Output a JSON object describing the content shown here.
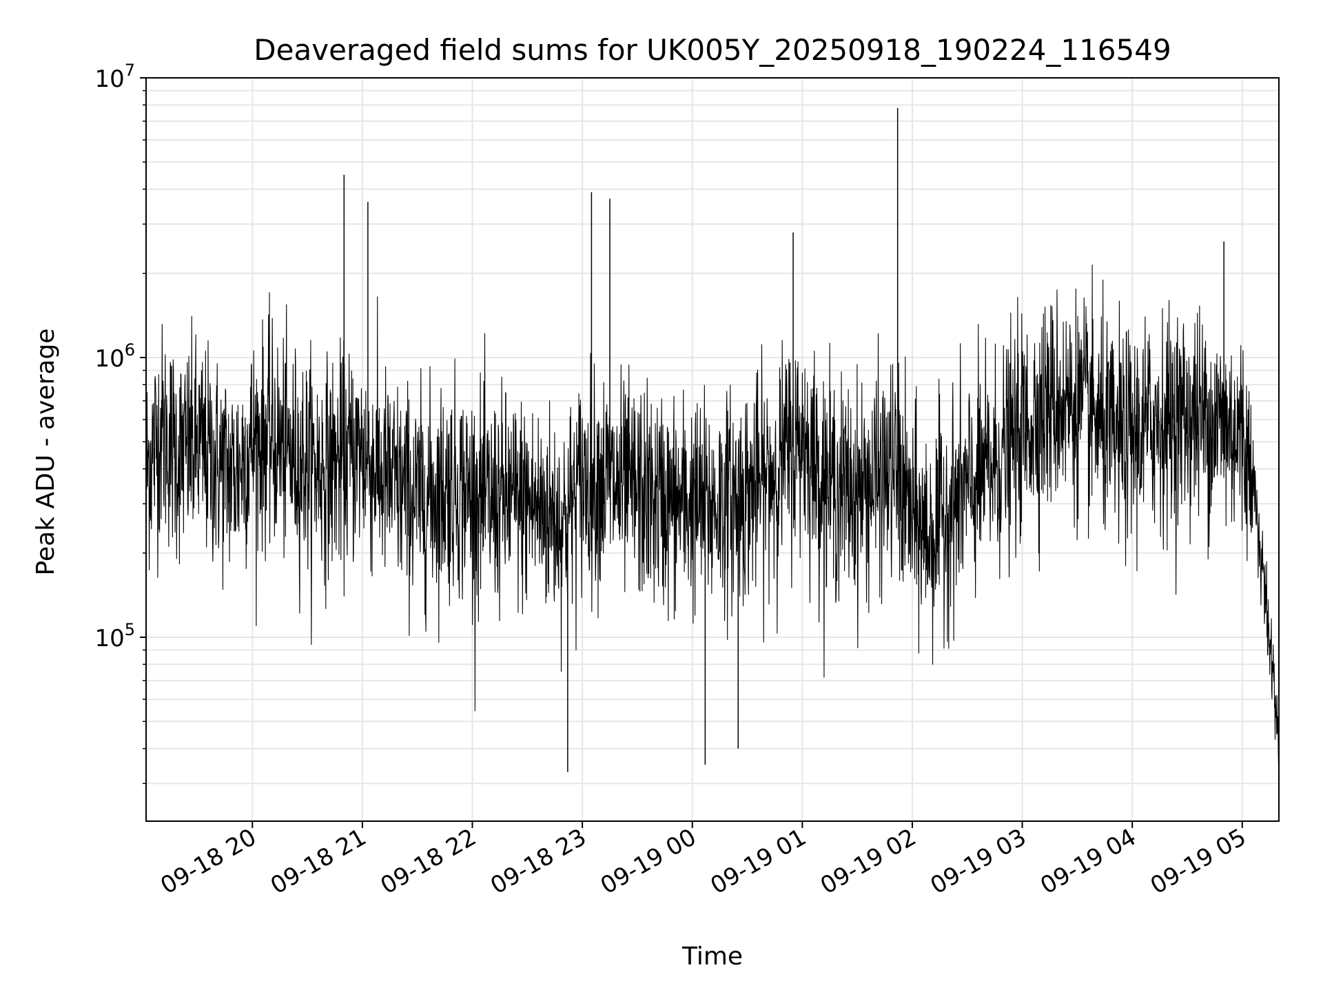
{
  "chart_data": {
    "type": "line",
    "title": "Deaveraged field sums for UK005Y_20250918_190224_116549",
    "xlabel": "Time",
    "ylabel": "Peak ADU - average",
    "yscale": "log",
    "ylim": [
      22000,
      10000000
    ],
    "xlim": [
      "2025-09-18 19:02",
      "2025-09-19 05:20"
    ],
    "grid": true,
    "line_color": "#000000",
    "grid_color": "#e6e6e6",
    "x_ticks": [
      {
        "value": "2025-09-18 20:00",
        "label": "09-18 20"
      },
      {
        "value": "2025-09-18 21:00",
        "label": "09-18 21"
      },
      {
        "value": "2025-09-18 22:00",
        "label": "09-18 22"
      },
      {
        "value": "2025-09-18 23:00",
        "label": "09-18 23"
      },
      {
        "value": "2025-09-19 00:00",
        "label": "09-19 00"
      },
      {
        "value": "2025-09-19 01:00",
        "label": "09-19 01"
      },
      {
        "value": "2025-09-19 02:00",
        "label": "09-19 02"
      },
      {
        "value": "2025-09-19 03:00",
        "label": "09-19 03"
      },
      {
        "value": "2025-09-19 04:00",
        "label": "09-19 04"
      },
      {
        "value": "2025-09-19 05:00",
        "label": "09-19 05"
      }
    ],
    "y_ticks": [
      {
        "value": 100000,
        "base": "10",
        "exp": "5"
      },
      {
        "value": 1000000,
        "base": "10",
        "exp": "6"
      },
      {
        "value": 10000000,
        "base": "10",
        "exp": "7"
      }
    ],
    "series": [
      {
        "x": [
          "2025-09-18 19:02",
          "2025-09-18 19:10",
          "2025-09-18 19:20",
          "2025-09-18 19:30",
          "2025-09-18 19:40",
          "2025-09-18 19:50",
          "2025-09-18 20:00",
          "2025-09-18 20:10",
          "2025-09-18 20:20",
          "2025-09-18 20:30",
          "2025-09-18 20:40",
          "2025-09-18 20:50",
          "2025-09-18 21:00",
          "2025-09-18 21:10",
          "2025-09-18 21:20",
          "2025-09-18 21:30",
          "2025-09-18 21:40",
          "2025-09-18 21:50",
          "2025-09-18 22:00",
          "2025-09-18 22:10",
          "2025-09-18 22:20",
          "2025-09-18 22:30",
          "2025-09-18 22:40",
          "2025-09-18 22:50",
          "2025-09-18 23:00",
          "2025-09-18 23:10",
          "2025-09-18 23:20",
          "2025-09-18 23:30",
          "2025-09-18 23:40",
          "2025-09-18 23:50",
          "2025-09-19 00:00",
          "2025-09-19 00:10",
          "2025-09-19 00:20",
          "2025-09-19 00:30",
          "2025-09-19 00:40",
          "2025-09-19 00:50",
          "2025-09-19 01:00",
          "2025-09-19 01:10",
          "2025-09-19 01:20",
          "2025-09-19 01:30",
          "2025-09-19 01:40",
          "2025-09-19 01:50",
          "2025-09-19 02:00",
          "2025-09-19 02:10",
          "2025-09-19 02:20",
          "2025-09-19 02:30",
          "2025-09-19 02:40",
          "2025-09-19 02:50",
          "2025-09-19 03:00",
          "2025-09-19 03:10",
          "2025-09-19 03:20",
          "2025-09-19 03:30",
          "2025-09-19 03:40",
          "2025-09-19 03:50",
          "2025-09-19 04:00",
          "2025-09-19 04:10",
          "2025-09-19 04:20",
          "2025-09-19 04:30",
          "2025-09-19 04:40",
          "2025-09-19 04:50",
          "2025-09-19 05:00",
          "2025-09-19 05:05",
          "2025-09-19 05:10",
          "2025-09-19 05:15",
          "2025-09-19 05:20"
        ],
        "y": [
          400000,
          550000,
          450000,
          480000,
          420000,
          380000,
          500000,
          520000,
          450000,
          420000,
          400000,
          430000,
          460000,
          380000,
          340000,
          310000,
          330000,
          350000,
          320000,
          300000,
          310000,
          300000,
          280000,
          260000,
          360000,
          370000,
          340000,
          330000,
          310000,
          300000,
          300000,
          290000,
          310000,
          330000,
          360000,
          440000,
          520000,
          380000,
          340000,
          330000,
          360000,
          400000,
          260000,
          230000,
          290000,
          330000,
          380000,
          450000,
          550000,
          650000,
          700000,
          680000,
          600000,
          500000,
          520000,
          580000,
          600000,
          620000,
          600000,
          580000,
          520000,
          400000,
          200000,
          100000,
          40000
        ]
      }
    ],
    "spikes": [
      {
        "x": "2025-09-18 20:50",
        "y": 4500000
      },
      {
        "x": "2025-09-18 21:03",
        "y": 3600000
      },
      {
        "x": "2025-09-18 23:05",
        "y": 3900000
      },
      {
        "x": "2025-09-18 23:15",
        "y": 3700000
      },
      {
        "x": "2025-09-19 01:52",
        "y": 7800000
      },
      {
        "x": "2025-09-19 00:55",
        "y": 2800000
      },
      {
        "x": "2025-09-19 04:50",
        "y": 2600000
      }
    ],
    "dips": [
      {
        "x": "2025-09-18 22:52",
        "y": 33000
      },
      {
        "x": "2025-09-19 00:07",
        "y": 35000
      },
      {
        "x": "2025-09-19 00:25",
        "y": 40000
      }
    ]
  }
}
